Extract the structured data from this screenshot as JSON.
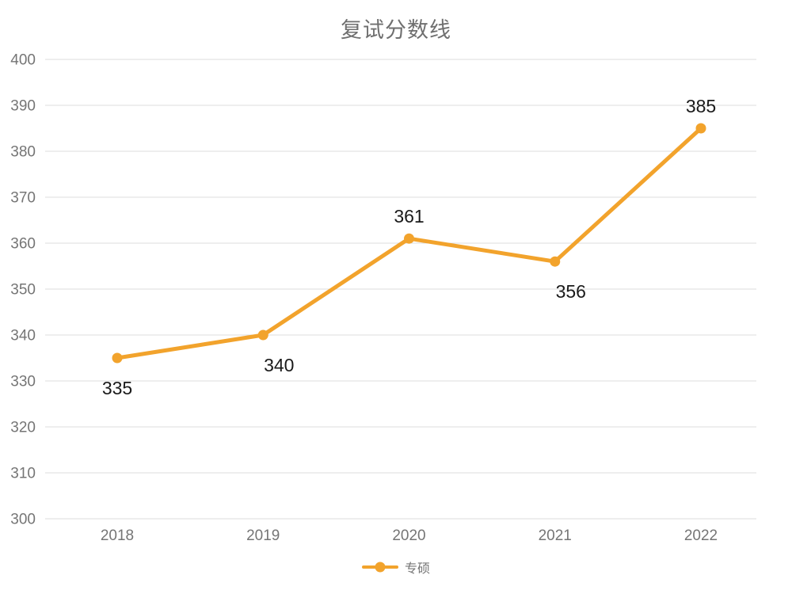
{
  "title": "复试分数线",
  "colors": {
    "series": "#F2A32C",
    "grid": "#DCDCDC",
    "axis_label": "#757575",
    "title": "#6F6F6F",
    "data_label": "#1A1A1A"
  },
  "legend": {
    "position": "bottom",
    "items": [
      {
        "label": "专硕",
        "color": "#F2A32C"
      }
    ]
  },
  "chart_data": {
    "type": "line",
    "title": "复试分数线",
    "categories": [
      "2018",
      "2019",
      "2020",
      "2021",
      "2022"
    ],
    "series": [
      {
        "name": "专硕",
        "values": [
          335,
          340,
          361,
          356,
          385
        ],
        "color": "#F2A32C"
      }
    ],
    "xlabel": "",
    "ylabel": "",
    "ylim": [
      300,
      400
    ],
    "ytick_interval": 10,
    "grid": true,
    "legend_position": "bottom",
    "data_labels": true,
    "label_positions": [
      "below",
      "below-right",
      "above",
      "below-right",
      "above"
    ]
  }
}
